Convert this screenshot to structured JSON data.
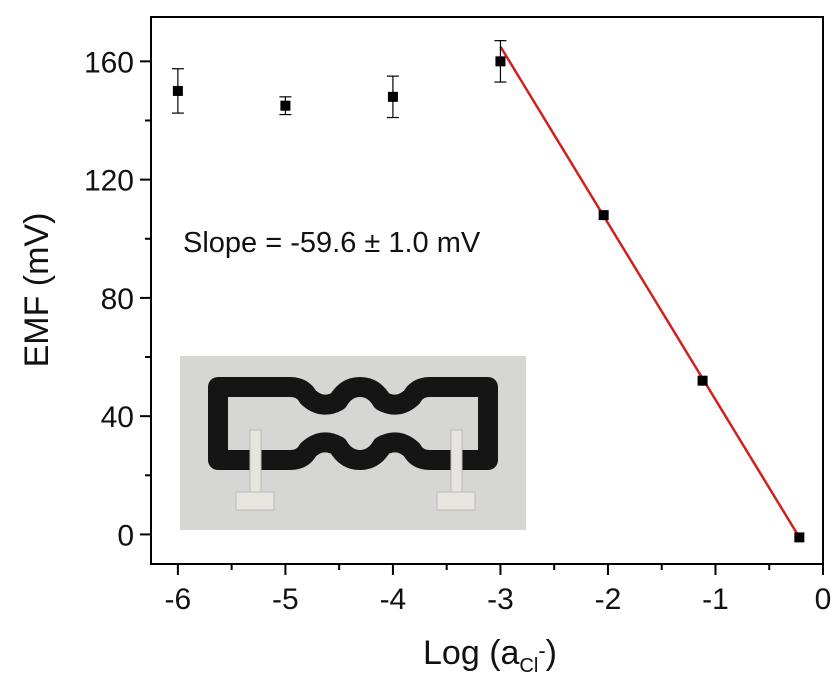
{
  "chart_data": {
    "type": "scatter",
    "xlabel_main": "Log (a",
    "xlabel_sub": "Cl",
    "xlabel_sup": "-",
    "xlabel_end": ")",
    "ylabel": "EMF (mV)",
    "xlim": [
      -6.25,
      0
    ],
    "ylim": [
      -10,
      175
    ],
    "x_ticks": [
      -6,
      -5,
      -4,
      -3,
      -2,
      -1,
      0
    ],
    "x_tick_labels": [
      "-6",
      "-5",
      "-4",
      "-3",
      "-2",
      "-1",
      "0"
    ],
    "y_ticks": [
      0,
      40,
      80,
      120,
      160
    ],
    "y_tick_labels": [
      "0",
      "40",
      "80",
      "120",
      "160"
    ],
    "grid": false,
    "annotation": "Slope = -59.6  ± 1.0 mV",
    "series": [
      {
        "marker": "square",
        "color": "#000000",
        "points": [
          {
            "x": -6.0,
            "y": 150,
            "err": 7.5
          },
          {
            "x": -5.0,
            "y": 145,
            "err": 3.0
          },
          {
            "x": -4.0,
            "y": 148,
            "err": 7.0
          },
          {
            "x": -3.0,
            "y": 160,
            "err": 7.0
          },
          {
            "x": -2.04,
            "y": 108,
            "err": 0
          },
          {
            "x": -1.12,
            "y": 52,
            "err": 0
          },
          {
            "x": -0.22,
            "y": -1,
            "err": 0
          }
        ]
      }
    ],
    "fit_line": {
      "color": "#d21f1f",
      "x": [
        -3.0,
        -0.22
      ],
      "y": [
        165,
        -1
      ]
    },
    "inset_image": "screen-printed chloride sensor photo"
  }
}
